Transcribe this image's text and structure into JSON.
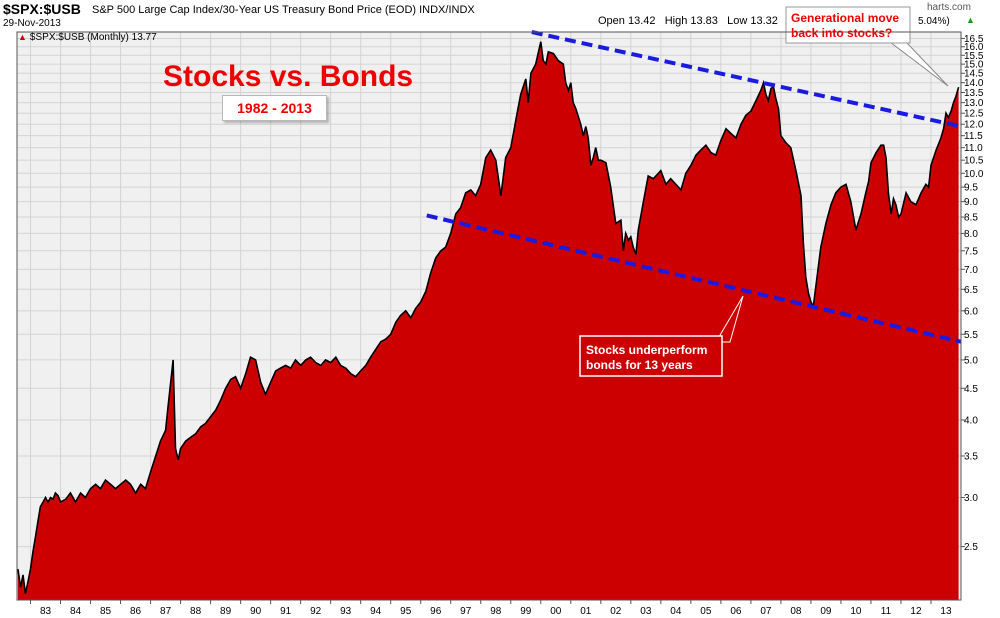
{
  "header": {
    "symbol": "$SPX:$USB",
    "description": "S&P 500 Large Cap Index/30-Year US Treasury Bond Price (EOD)  INDX/INDX",
    "date": "29-Nov-2013",
    "open_label": "Open",
    "open_value": "13.42",
    "high_label": "High",
    "high_value": "13.83",
    "low_label": "Low",
    "low_value": "13.32",
    "change_fragment": "5.04%)",
    "site_fragment": "harts.com"
  },
  "legend": {
    "text": "$SPX:$USB (Monthly) 13.77"
  },
  "annotations": {
    "title": "Stocks vs. Bonds",
    "range": "1982 - 2013",
    "callout_top": [
      "Generational move",
      "back into stocks?"
    ],
    "callout_bottom": [
      "Stocks underperform",
      "bonds for 13 years"
    ]
  },
  "colors": {
    "area_fill": "#cc0000",
    "line": "#000000",
    "plot_bg": "#f0f0f0",
    "grid": "#d4d4d4",
    "trendline": "#1a1ae0",
    "title_text": "#ee0000",
    "up_arrow": "#1a9a1a"
  },
  "chart_data": {
    "type": "area",
    "title": "Stocks vs. Bonds",
    "subtitle": "1982 - 2013",
    "xlabel": "",
    "ylabel": "",
    "y_scale": "log",
    "ylim": [
      2.05,
      16.9
    ],
    "xlim": [
      1982.55,
      2014.0
    ],
    "grid": true,
    "legend_position": "top-left",
    "x_tick_labels": [
      "83",
      "84",
      "85",
      "86",
      "87",
      "88",
      "89",
      "90",
      "91",
      "92",
      "93",
      "94",
      "95",
      "96",
      "97",
      "98",
      "99",
      "00",
      "01",
      "02",
      "03",
      "04",
      "05",
      "06",
      "07",
      "08",
      "09",
      "10",
      "11",
      "12",
      "13"
    ],
    "y_tick_labels": [
      "2.5",
      "3.0",
      "3.5",
      "4.0",
      "4.5",
      "5.0",
      "5.5",
      "6.0",
      "6.5",
      "7.0",
      "7.5",
      "8.0",
      "8.5",
      "9.0",
      "9.5",
      "10.0",
      "10.5",
      "11.0",
      "11.5",
      "12.0",
      "12.5",
      "13.0",
      "13.5",
      "14.0",
      "14.5",
      "15.0",
      "15.5",
      "16.0",
      "16.5"
    ],
    "series": [
      {
        "name": "$SPX:$USB (Monthly)",
        "points": [
          [
            1982.58,
            2.3
          ],
          [
            1982.67,
            2.15
          ],
          [
            1982.75,
            2.25
          ],
          [
            1982.83,
            2.1
          ],
          [
            1982.92,
            2.2
          ],
          [
            1983.0,
            2.3
          ],
          [
            1983.08,
            2.45
          ],
          [
            1983.17,
            2.6
          ],
          [
            1983.25,
            2.75
          ],
          [
            1983.33,
            2.9
          ],
          [
            1983.42,
            2.95
          ],
          [
            1983.5,
            3.0
          ],
          [
            1983.58,
            2.95
          ],
          [
            1983.67,
            3.0
          ],
          [
            1983.75,
            2.98
          ],
          [
            1983.83,
            3.05
          ],
          [
            1983.92,
            3.02
          ],
          [
            1984.0,
            2.95
          ],
          [
            1984.17,
            2.98
          ],
          [
            1984.33,
            3.05
          ],
          [
            1984.5,
            2.95
          ],
          [
            1984.67,
            3.05
          ],
          [
            1984.83,
            3.0
          ],
          [
            1985.0,
            3.1
          ],
          [
            1985.17,
            3.15
          ],
          [
            1985.33,
            3.1
          ],
          [
            1985.5,
            3.2
          ],
          [
            1985.67,
            3.15
          ],
          [
            1985.83,
            3.1
          ],
          [
            1986.0,
            3.15
          ],
          [
            1986.17,
            3.2
          ],
          [
            1986.33,
            3.15
          ],
          [
            1986.5,
            3.05
          ],
          [
            1986.67,
            3.15
          ],
          [
            1986.83,
            3.1
          ],
          [
            1987.0,
            3.3
          ],
          [
            1987.17,
            3.5
          ],
          [
            1987.33,
            3.7
          ],
          [
            1987.5,
            3.85
          ],
          [
            1987.58,
            4.2
          ],
          [
            1987.67,
            4.6
          ],
          [
            1987.75,
            5.0
          ],
          [
            1987.83,
            3.6
          ],
          [
            1987.92,
            3.45
          ],
          [
            1988.0,
            3.6
          ],
          [
            1988.17,
            3.7
          ],
          [
            1988.33,
            3.75
          ],
          [
            1988.5,
            3.8
          ],
          [
            1988.67,
            3.9
          ],
          [
            1988.83,
            3.95
          ],
          [
            1989.0,
            4.05
          ],
          [
            1989.17,
            4.15
          ],
          [
            1989.33,
            4.3
          ],
          [
            1989.5,
            4.5
          ],
          [
            1989.67,
            4.65
          ],
          [
            1989.83,
            4.7
          ],
          [
            1990.0,
            4.5
          ],
          [
            1990.17,
            4.75
          ],
          [
            1990.33,
            5.05
          ],
          [
            1990.5,
            5.0
          ],
          [
            1990.67,
            4.6
          ],
          [
            1990.83,
            4.4
          ],
          [
            1991.0,
            4.6
          ],
          [
            1991.17,
            4.8
          ],
          [
            1991.33,
            4.85
          ],
          [
            1991.5,
            4.9
          ],
          [
            1991.67,
            4.85
          ],
          [
            1991.83,
            5.0
          ],
          [
            1992.0,
            4.9
          ],
          [
            1992.17,
            5.0
          ],
          [
            1992.33,
            5.05
          ],
          [
            1992.5,
            4.95
          ],
          [
            1992.67,
            4.9
          ],
          [
            1992.83,
            5.0
          ],
          [
            1993.0,
            4.95
          ],
          [
            1993.17,
            5.05
          ],
          [
            1993.33,
            4.9
          ],
          [
            1993.5,
            4.85
          ],
          [
            1993.67,
            4.75
          ],
          [
            1993.83,
            4.7
          ],
          [
            1994.0,
            4.8
          ],
          [
            1994.17,
            4.9
          ],
          [
            1994.33,
            5.05
          ],
          [
            1994.5,
            5.2
          ],
          [
            1994.67,
            5.35
          ],
          [
            1994.83,
            5.4
          ],
          [
            1995.0,
            5.5
          ],
          [
            1995.17,
            5.75
          ],
          [
            1995.33,
            5.9
          ],
          [
            1995.5,
            6.0
          ],
          [
            1995.67,
            5.85
          ],
          [
            1995.83,
            6.05
          ],
          [
            1996.0,
            6.2
          ],
          [
            1996.17,
            6.45
          ],
          [
            1996.33,
            6.9
          ],
          [
            1996.5,
            7.3
          ],
          [
            1996.67,
            7.5
          ],
          [
            1996.83,
            7.6
          ],
          [
            1997.0,
            8.0
          ],
          [
            1997.17,
            8.6
          ],
          [
            1997.33,
            8.8
          ],
          [
            1997.5,
            9.3
          ],
          [
            1997.67,
            9.4
          ],
          [
            1997.83,
            9.2
          ],
          [
            1998.0,
            9.6
          ],
          [
            1998.17,
            10.6
          ],
          [
            1998.33,
            10.9
          ],
          [
            1998.5,
            10.5
          ],
          [
            1998.67,
            9.2
          ],
          [
            1998.83,
            10.6
          ],
          [
            1999.0,
            11.0
          ],
          [
            1999.17,
            12.2
          ],
          [
            1999.33,
            13.4
          ],
          [
            1999.5,
            14.2
          ],
          [
            1999.58,
            13.0
          ],
          [
            1999.67,
            14.5
          ],
          [
            1999.83,
            15.0
          ],
          [
            2000.0,
            16.3
          ],
          [
            2000.08,
            15.2
          ],
          [
            2000.17,
            15.0
          ],
          [
            2000.25,
            15.7
          ],
          [
            2000.42,
            15.6
          ],
          [
            2000.58,
            15.2
          ],
          [
            2000.75,
            15.0
          ],
          [
            2000.83,
            14.0
          ],
          [
            2000.92,
            13.6
          ],
          [
            2001.0,
            14.0
          ],
          [
            2001.08,
            13.0
          ],
          [
            2001.17,
            12.7
          ],
          [
            2001.33,
            12.0
          ],
          [
            2001.42,
            11.5
          ],
          [
            2001.5,
            11.9
          ],
          [
            2001.58,
            11.4
          ],
          [
            2001.67,
            10.3
          ],
          [
            2001.75,
            10.6
          ],
          [
            2001.83,
            11.0
          ],
          [
            2001.92,
            10.5
          ],
          [
            2002.0,
            10.5
          ],
          [
            2002.17,
            10.4
          ],
          [
            2002.33,
            9.5
          ],
          [
            2002.5,
            8.3
          ],
          [
            2002.67,
            8.4
          ],
          [
            2002.75,
            7.5
          ],
          [
            2002.83,
            8.0
          ],
          [
            2002.92,
            7.8
          ],
          [
            2003.0,
            7.9
          ],
          [
            2003.08,
            7.6
          ],
          [
            2003.17,
            7.4
          ],
          [
            2003.25,
            8.1
          ],
          [
            2003.42,
            9.0
          ],
          [
            2003.58,
            9.9
          ],
          [
            2003.75,
            9.8
          ],
          [
            2003.92,
            10.0
          ],
          [
            2004.0,
            10.1
          ],
          [
            2004.17,
            9.6
          ],
          [
            2004.33,
            9.8
          ],
          [
            2004.5,
            9.6
          ],
          [
            2004.67,
            9.4
          ],
          [
            2004.83,
            10.0
          ],
          [
            2005.0,
            10.3
          ],
          [
            2005.17,
            10.7
          ],
          [
            2005.33,
            10.9
          ],
          [
            2005.5,
            11.1
          ],
          [
            2005.67,
            10.8
          ],
          [
            2005.83,
            10.7
          ],
          [
            2006.0,
            11.3
          ],
          [
            2006.17,
            11.8
          ],
          [
            2006.33,
            11.6
          ],
          [
            2006.5,
            11.4
          ],
          [
            2006.67,
            12.0
          ],
          [
            2006.83,
            12.4
          ],
          [
            2007.0,
            12.6
          ],
          [
            2007.17,
            13.1
          ],
          [
            2007.33,
            13.6
          ],
          [
            2007.42,
            14.0
          ],
          [
            2007.5,
            13.4
          ],
          [
            2007.58,
            13.1
          ],
          [
            2007.67,
            13.7
          ],
          [
            2007.75,
            13.8
          ],
          [
            2007.83,
            13.2
          ],
          [
            2007.92,
            12.7
          ],
          [
            2008.0,
            11.5
          ],
          [
            2008.17,
            11.2
          ],
          [
            2008.33,
            11.0
          ],
          [
            2008.5,
            10.1
          ],
          [
            2008.67,
            9.2
          ],
          [
            2008.75,
            7.7
          ],
          [
            2008.83,
            6.8
          ],
          [
            2008.92,
            6.4
          ],
          [
            2009.0,
            6.2
          ],
          [
            2009.08,
            6.1
          ],
          [
            2009.17,
            6.6
          ],
          [
            2009.33,
            7.6
          ],
          [
            2009.5,
            8.3
          ],
          [
            2009.67,
            8.9
          ],
          [
            2009.83,
            9.3
          ],
          [
            2010.0,
            9.5
          ],
          [
            2010.17,
            9.6
          ],
          [
            2010.33,
            9.0
          ],
          [
            2010.5,
            8.1
          ],
          [
            2010.67,
            8.6
          ],
          [
            2010.83,
            9.3
          ],
          [
            2010.92,
            9.7
          ],
          [
            2011.0,
            10.4
          ],
          [
            2011.17,
            10.8
          ],
          [
            2011.33,
            11.1
          ],
          [
            2011.42,
            11.1
          ],
          [
            2011.5,
            10.6
          ],
          [
            2011.58,
            9.3
          ],
          [
            2011.67,
            8.6
          ],
          [
            2011.75,
            9.1
          ],
          [
            2011.83,
            8.9
          ],
          [
            2011.92,
            8.5
          ],
          [
            2012.0,
            8.6
          ],
          [
            2012.17,
            9.3
          ],
          [
            2012.33,
            9.0
          ],
          [
            2012.5,
            8.9
          ],
          [
            2012.67,
            9.3
          ],
          [
            2012.83,
            9.6
          ],
          [
            2012.92,
            9.5
          ],
          [
            2013.0,
            10.3
          ],
          [
            2013.17,
            10.9
          ],
          [
            2013.33,
            11.4
          ],
          [
            2013.42,
            11.8
          ],
          [
            2013.5,
            12.5
          ],
          [
            2013.58,
            12.3
          ],
          [
            2013.67,
            12.6
          ],
          [
            2013.75,
            13.0
          ],
          [
            2013.83,
            13.3
          ],
          [
            2013.92,
            13.77
          ]
        ]
      }
    ],
    "trendlines": [
      {
        "from": [
          1999.7,
          16.9
        ],
        "to": [
          2014.0,
          11.9
        ]
      },
      {
        "from": [
          1996.2,
          8.55
        ],
        "to": [
          2014.0,
          5.35
        ]
      }
    ]
  }
}
